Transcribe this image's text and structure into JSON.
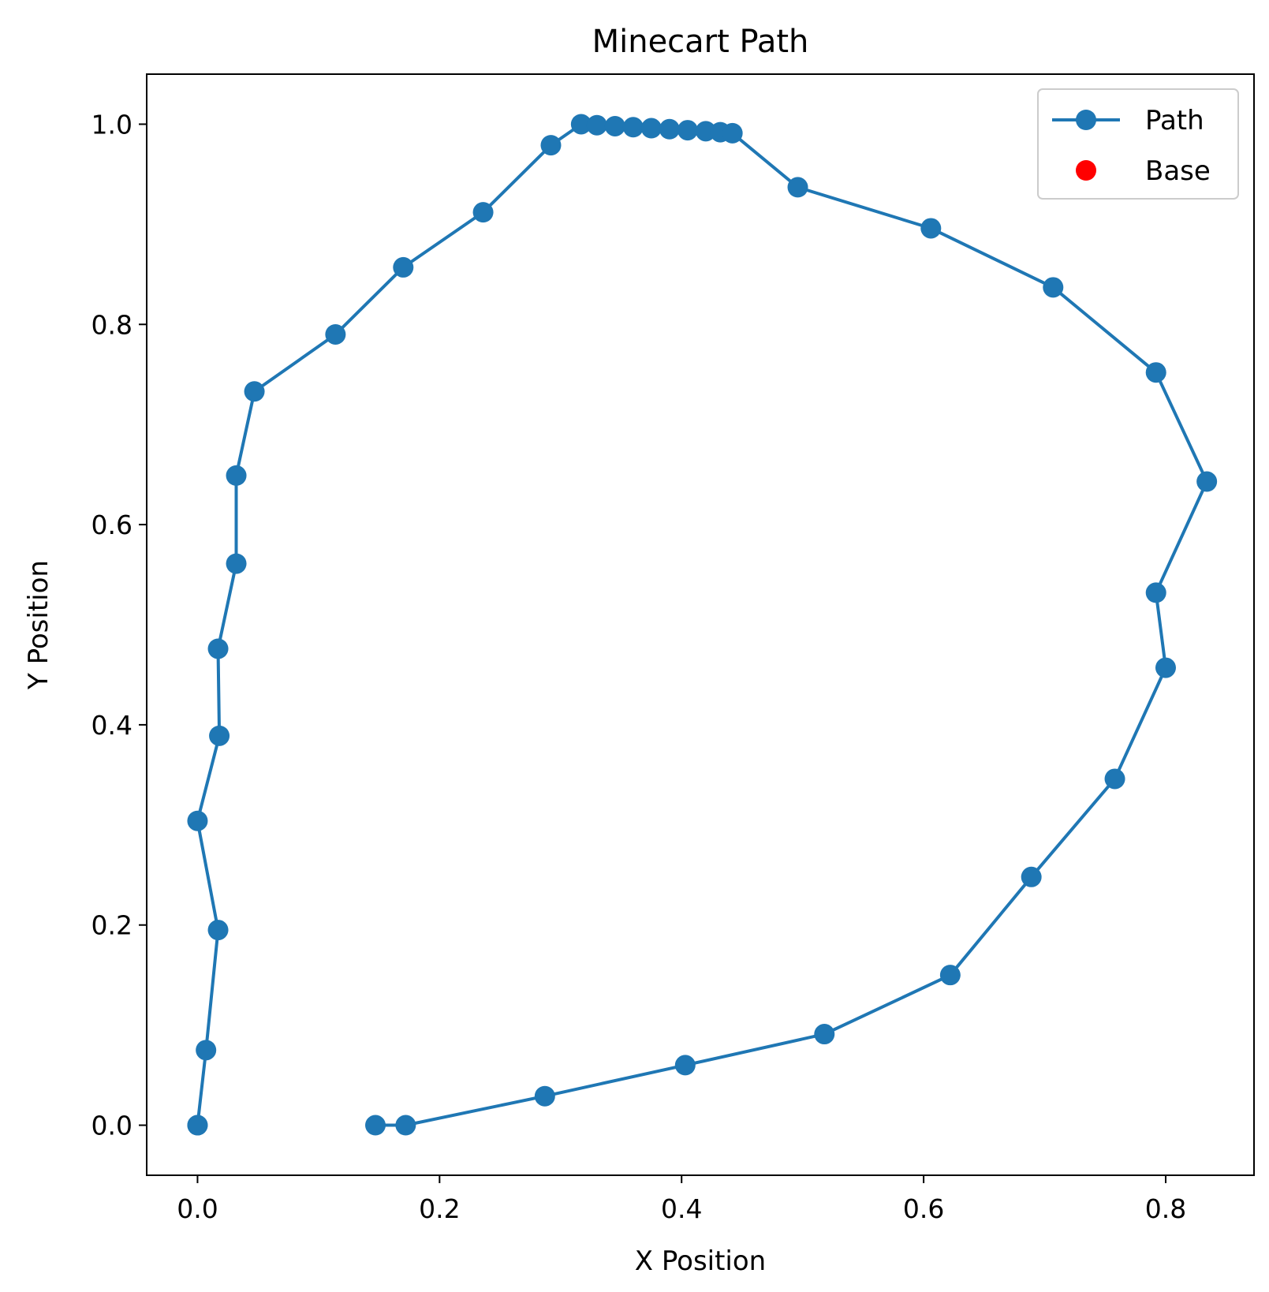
{
  "chart_data": {
    "type": "line",
    "title": "Minecart Path",
    "xlabel": "X Position",
    "ylabel": "Y Position",
    "xlim": [
      -0.042,
      0.873
    ],
    "ylim": [
      -0.05,
      1.05
    ],
    "xticks": [
      0.0,
      0.2,
      0.4,
      0.6,
      0.8
    ],
    "yticks": [
      0.0,
      0.2,
      0.4,
      0.6,
      0.8,
      1.0
    ],
    "xtick_labels": [
      "0.0",
      "0.2",
      "0.4",
      "0.6",
      "0.8"
    ],
    "ytick_labels": [
      "0.0",
      "0.2",
      "0.4",
      "0.6",
      "0.8",
      "1.0"
    ],
    "grid": false,
    "legend": {
      "position": "top-right",
      "entries": [
        "Path",
        "Base"
      ]
    },
    "series": [
      {
        "name": "Path",
        "type": "line-marker",
        "color": "#1f77b4",
        "x": [
          0.0,
          0.0,
          0.007,
          0.017,
          0.0,
          0.018,
          0.017,
          0.032,
          0.032,
          0.047,
          0.114,
          0.17,
          0.236,
          0.292,
          0.317,
          0.33,
          0.345,
          0.36,
          0.375,
          0.39,
          0.405,
          0.42,
          0.432,
          0.442,
          0.496,
          0.606,
          0.707,
          0.792,
          0.834,
          0.792,
          0.8,
          0.758,
          0.689,
          0.622,
          0.518,
          0.403,
          0.287,
          0.172,
          0.147
        ],
        "y": [
          0.0,
          0.0,
          0.075,
          0.195,
          0.304,
          0.389,
          0.476,
          0.561,
          0.649,
          0.733,
          0.79,
          0.857,
          0.912,
          0.979,
          1.0,
          0.999,
          0.998,
          0.997,
          0.996,
          0.995,
          0.994,
          0.993,
          0.992,
          0.991,
          0.937,
          0.896,
          0.837,
          0.752,
          0.643,
          0.532,
          0.457,
          0.346,
          0.248,
          0.15,
          0.091,
          0.06,
          0.029,
          0.0,
          0.0
        ]
      },
      {
        "name": "Base",
        "type": "scatter",
        "color": "#ff0000",
        "x": [],
        "y": []
      }
    ]
  }
}
